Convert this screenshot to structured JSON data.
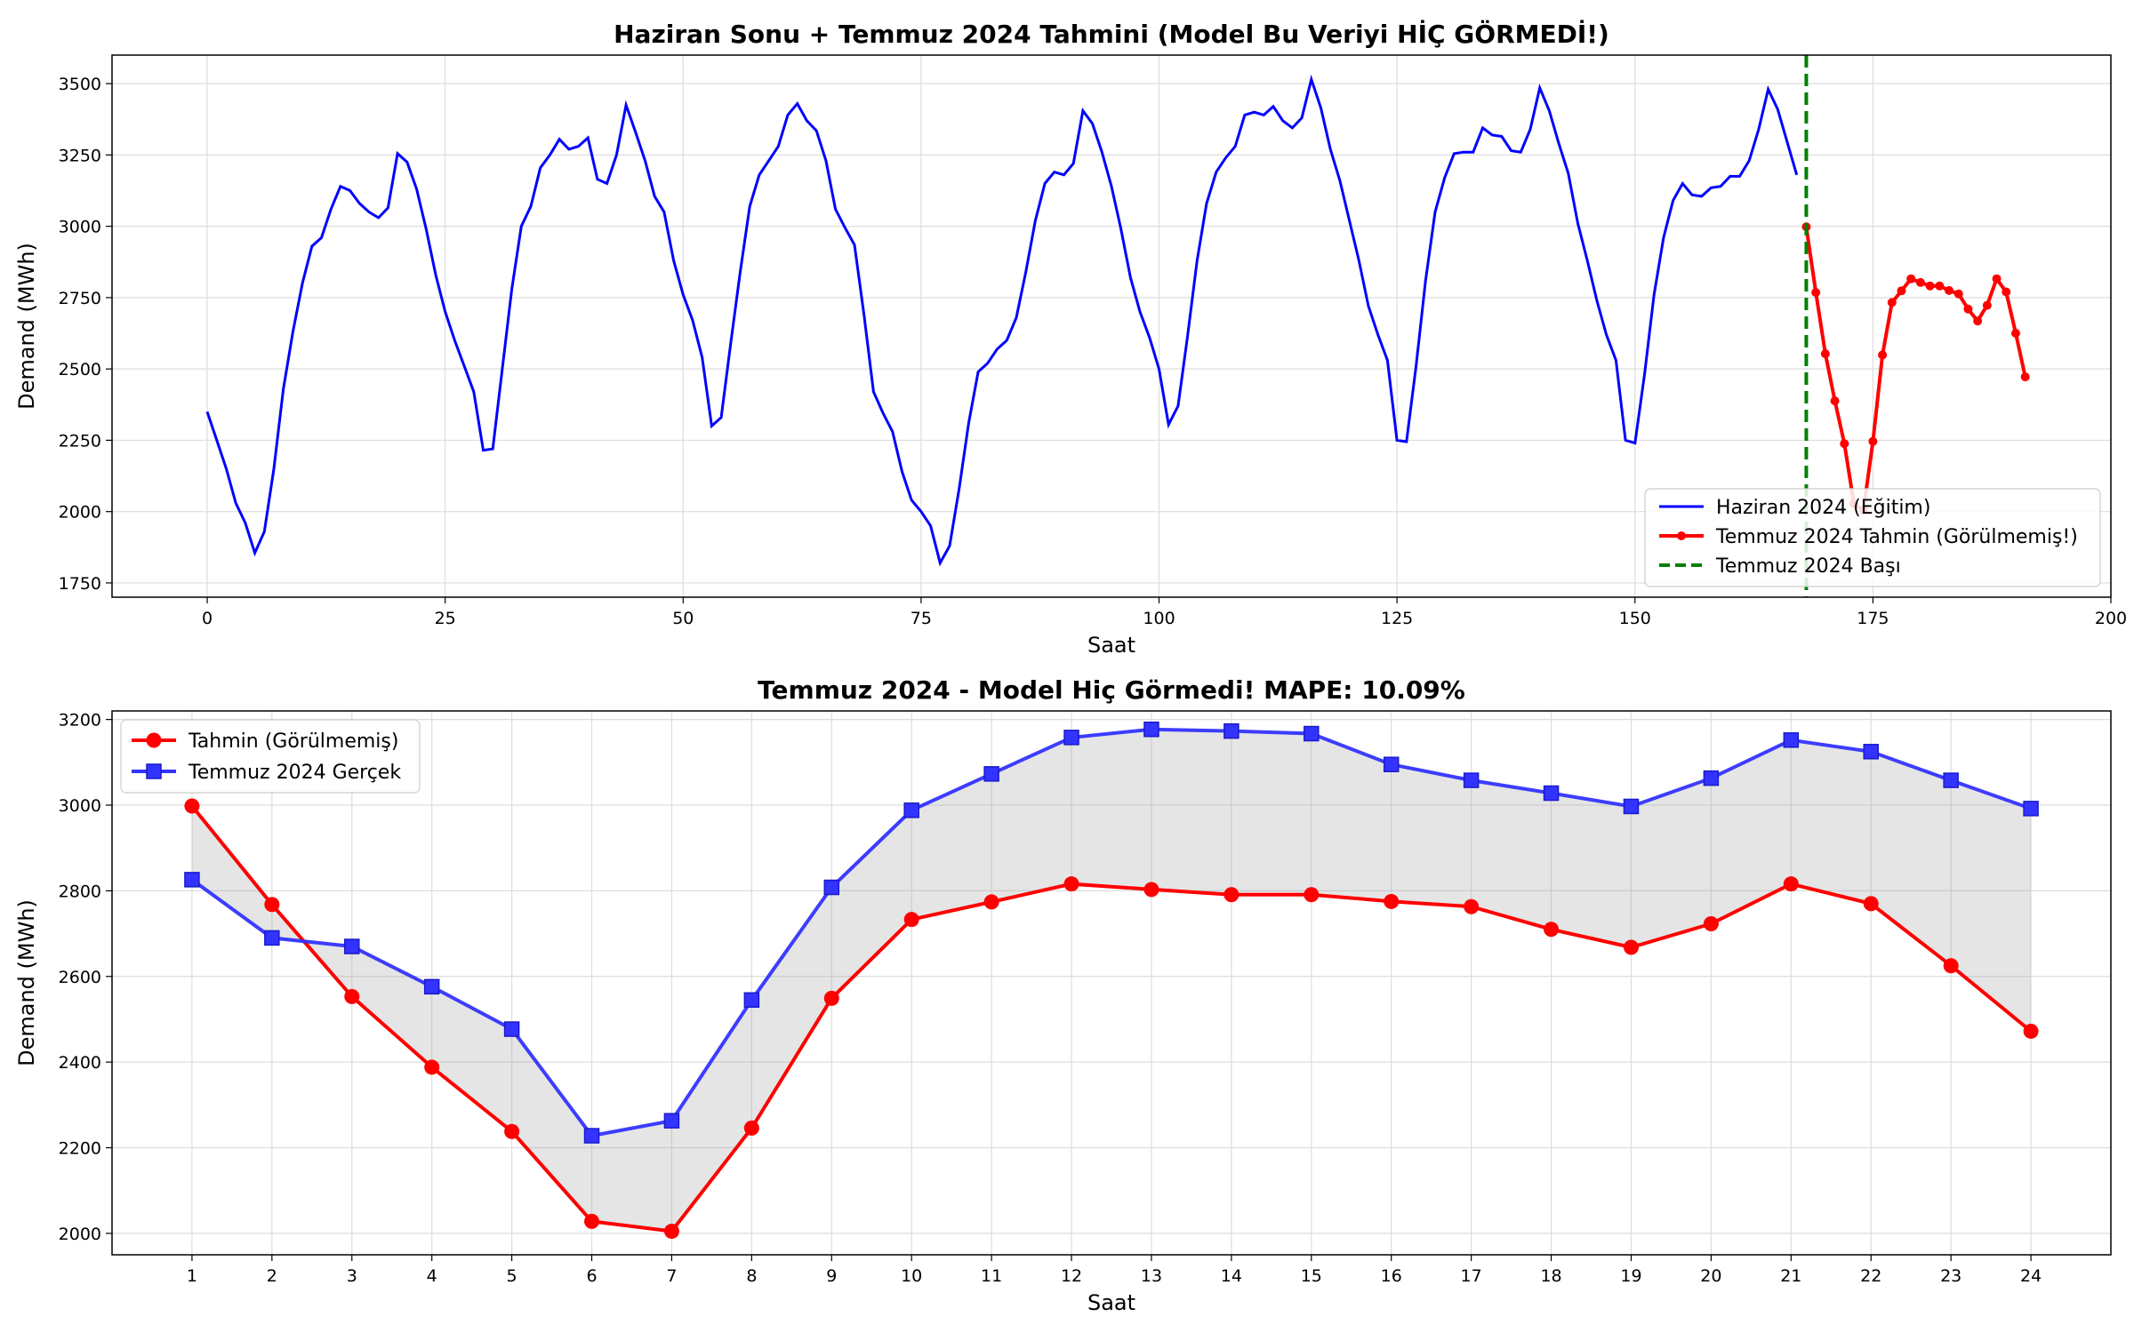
{
  "chart_data": [
    {
      "type": "line",
      "title": "Haziran Sonu + Temmuz 2024 Tahmini (Model Bu Veriyi HİÇ GÖRMEDİ!)",
      "xlabel": "Saat",
      "ylabel": "Demand (MWh)",
      "xlim": [
        -10,
        200
      ],
      "ylim": [
        1700,
        3600
      ],
      "xticks": [
        0,
        25,
        50,
        75,
        100,
        125,
        150,
        175,
        200
      ],
      "yticks": [
        1750,
        2000,
        2250,
        2500,
        2750,
        3000,
        3250,
        3500
      ],
      "grid": true,
      "legend_position": "lower-right",
      "series": [
        {
          "name": "Haziran 2024 (Eğitim)",
          "color": "#0000ff",
          "x_start": 0,
          "values": [
            2350,
            2250,
            2150,
            2030,
            1960,
            1855,
            1930,
            2150,
            2430,
            2630,
            2800,
            2930,
            2960,
            3060,
            3140,
            3125,
            3080,
            3050,
            3030,
            3065,
            3255,
            3225,
            3130,
            2990,
            2830,
            2700,
            2600,
            2510,
            2420,
            2215,
            2220,
            2500,
            2780,
            3000,
            3070,
            3205,
            3250,
            3305,
            3270,
            3280,
            3310,
            3165,
            3150,
            3250,
            3425,
            3330,
            3230,
            3105,
            3050,
            2880,
            2760,
            2670,
            2540,
            2300,
            2330,
            2590,
            2840,
            3070,
            3180,
            3230,
            3280,
            3390,
            3430,
            3370,
            3335,
            3230,
            3060,
            2995,
            2935,
            2690,
            2420,
            2345,
            2280,
            2140,
            2040,
            2000,
            1950,
            1820,
            1880,
            2080,
            2310,
            2490,
            2520,
            2570,
            2600,
            2680,
            2840,
            3020,
            3150,
            3190,
            3180,
            3220,
            3405,
            3360,
            3260,
            3140,
            2990,
            2820,
            2700,
            2610,
            2500,
            2305,
            2370,
            2615,
            2880,
            3080,
            3190,
            3240,
            3280,
            3390,
            3400,
            3390,
            3420,
            3370,
            3345,
            3380,
            3515,
            3415,
            3270,
            3160,
            3020,
            2880,
            2720,
            2620,
            2530,
            2250,
            2245,
            2510,
            2810,
            3050,
            3170,
            3255,
            3260,
            3260,
            3345,
            3320,
            3315,
            3265,
            3260,
            3340,
            3485,
            3405,
            3290,
            3185,
            3010,
            2880,
            2740,
            2620,
            2530,
            2250,
            2240,
            2480,
            2760,
            2960,
            3090,
            3150,
            3110,
            3105,
            3135,
            3140,
            3175,
            3175,
            3230,
            3340,
            3480,
            3410,
            3295,
            3180
          ]
        },
        {
          "name": "Temmuz 2024 Tahmin (Görülmemiş!)",
          "color": "#ff0000",
          "x_start": 168,
          "values": [
            2998,
            2768,
            2553,
            2388,
            2238,
            2028,
            2005,
            2246,
            2549,
            2733,
            2774,
            2816,
            2803,
            2791,
            2791,
            2775,
            2763,
            2710,
            2668,
            2723,
            2816,
            2770,
            2625,
            2472
          ]
        },
        {
          "name": "Temmuz 2024 Başı",
          "color": "#008000",
          "x": 168
        }
      ]
    },
    {
      "type": "line",
      "title": "Temmuz 2024 - Model Hiç Görmedi! MAPE: 10.09%",
      "xlabel": "Saat",
      "ylabel": "Demand (MWh)",
      "xlim": [
        0,
        25
      ],
      "ylim": [
        1950,
        3220
      ],
      "yticks": [
        2000,
        2200,
        2400,
        2600,
        2800,
        3000,
        3200
      ],
      "grid": true,
      "legend_position": "top-left",
      "categories": [
        "1",
        "2",
        "3",
        "4",
        "5",
        "6",
        "7",
        "8",
        "9",
        "10",
        "11",
        "12",
        "13",
        "14",
        "15",
        "16",
        "17",
        "18",
        "19",
        "20",
        "21",
        "22",
        "23",
        "24"
      ],
      "series": [
        {
          "name": "Tahmin (Görülmemiş)",
          "color": "#ff0000",
          "values": [
            2998,
            2768,
            2553,
            2388,
            2238,
            2028,
            2005,
            2246,
            2549,
            2733,
            2774,
            2816,
            2803,
            2791,
            2791,
            2775,
            2763,
            2710,
            2668,
            2723,
            2816,
            2770,
            2625,
            2472
          ]
        },
        {
          "name": "Temmuz 2024 Gerçek",
          "color": "#3333ff",
          "values": [
            2826,
            2690,
            2670,
            2576,
            2477,
            2228,
            2263,
            2545,
            2808,
            2988,
            3073,
            3158,
            3177,
            3173,
            3167,
            3095,
            3058,
            3028,
            2997,
            3063,
            3152,
            3125,
            3058,
            2992
          ]
        }
      ]
    }
  ]
}
